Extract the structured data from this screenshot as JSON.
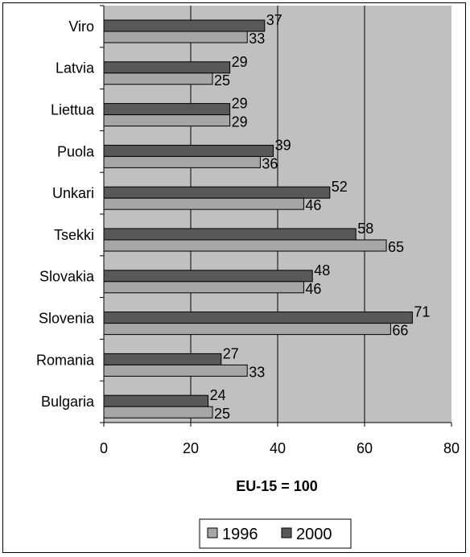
{
  "chart_data": {
    "type": "bar",
    "orientation": "horizontal",
    "categories": [
      "Viro",
      "Latvia",
      "Liettua",
      "Puola",
      "Unkari",
      "Tsekki",
      "Slovakia",
      "Slovenia",
      "Romania",
      "Bulgaria"
    ],
    "series": [
      {
        "name": "2000",
        "values": [
          37,
          29,
          29,
          39,
          52,
          58,
          48,
          71,
          27,
          24
        ],
        "color": "#595959"
      },
      {
        "name": "1996",
        "values": [
          33,
          25,
          29,
          36,
          46,
          65,
          46,
          66,
          33,
          25
        ],
        "color": "#a6a6a6"
      }
    ],
    "xlabel": "EU-15 = 100",
    "ylabel": "",
    "xlim": [
      0,
      80
    ],
    "xticks": [
      0,
      20,
      40,
      60,
      80
    ],
    "grid": true,
    "plot_background": "#c0c0c0",
    "legend": {
      "position": "bottom",
      "entries": [
        "1996",
        "2000"
      ]
    }
  }
}
